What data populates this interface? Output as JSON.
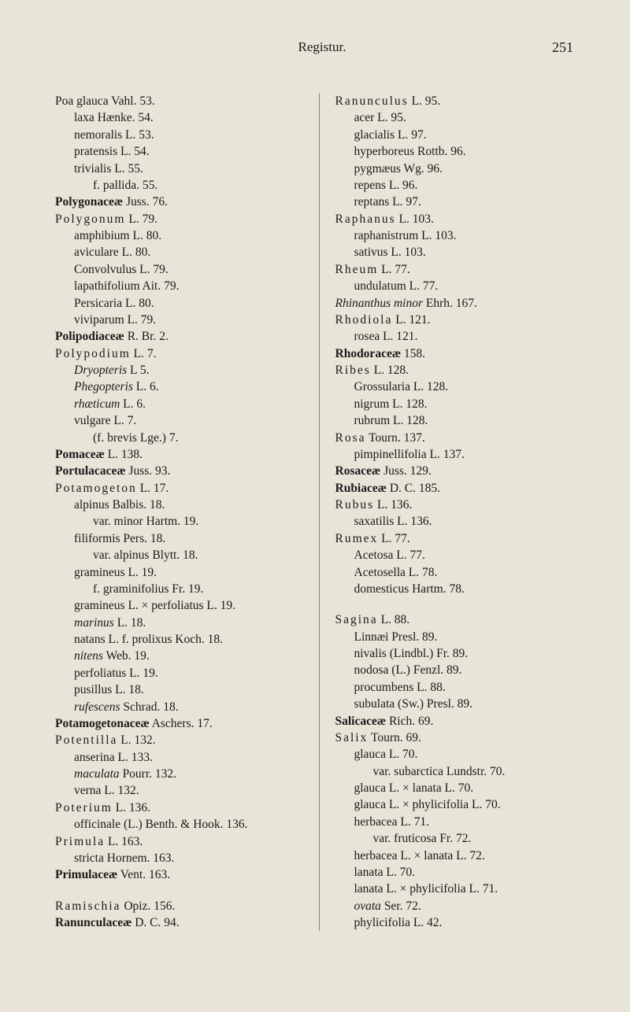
{
  "header": {
    "title": "Registur.",
    "page_number": "251"
  },
  "left": [
    {
      "t": "Poa glauca Vahl. 53.",
      "cls": "spaced-first"
    },
    {
      "t": "laxa Hænke. 54.",
      "indent": true
    },
    {
      "t": "nemoralis L. 53.",
      "indent": true
    },
    {
      "t": "pratensis L. 54.",
      "indent": true
    },
    {
      "t": "trivialis L. 55.",
      "indent": true
    },
    {
      "t": "f. pallida. 55.",
      "indent": true,
      "extra": true
    },
    {
      "t": "Polygonaceæ Juss. 76.",
      "bold": "Polygonaceæ"
    },
    {
      "t": "Polygonum L. 79.",
      "spaced": "Polygonum"
    },
    {
      "t": "amphibium L. 80.",
      "indent": true
    },
    {
      "t": "aviculare L. 80.",
      "indent": true
    },
    {
      "t": "Convolvulus L. 79.",
      "indent": true
    },
    {
      "t": "lapathifolium Ait. 79.",
      "indent": true
    },
    {
      "t": "Persicaria L. 80.",
      "indent": true
    },
    {
      "t": "viviparum L. 79.",
      "indent": true
    },
    {
      "t": "Polipodiaceæ R. Br. 2.",
      "bold": "Polipodiaceæ"
    },
    {
      "t": "Polypodium L. 7.",
      "spaced": "Polypodium"
    },
    {
      "t": "Dryopteris L 5.",
      "indent": true,
      "italic": "Dryopteris"
    },
    {
      "t": "Phegopteris L. 6.",
      "indent": true,
      "italic": "Phegopteris"
    },
    {
      "t": "rhæticum L. 6.",
      "indent": true,
      "italic": "rhæticum"
    },
    {
      "t": "vulgare L. 7.",
      "indent": true
    },
    {
      "t": "(f. brevis Lge.) 7.",
      "indent": true,
      "extra": true
    },
    {
      "t": "Pomaceæ L. 138.",
      "bold": "Pomaceæ"
    },
    {
      "t": "Portulacaceæ Juss. 93.",
      "bold": "Portulacaceæ"
    },
    {
      "t": "Potamogeton L. 17.",
      "spaced": "Potamogeton"
    },
    {
      "t": "alpinus Balbis. 18.",
      "indent": true
    },
    {
      "t": "var. minor Hartm. 19.",
      "indent": true,
      "extra": true
    },
    {
      "t": "filiformis Pers. 18.",
      "indent": true
    },
    {
      "t": "var. alpinus Blytt. 18.",
      "indent": true,
      "extra": true
    },
    {
      "t": "gramineus L. 19.",
      "indent": true
    },
    {
      "t": "f. graminifolius Fr. 19.",
      "indent": true,
      "extra": true
    },
    {
      "t": "gramineus L. × perfoliatus L. 19.",
      "indent": true
    },
    {
      "t": "marinus L. 18.",
      "indent": true,
      "italic": "marinus"
    },
    {
      "t": "natans L. f. prolixus Koch. 18.",
      "indent": true
    },
    {
      "t": "nitens Web. 19.",
      "indent": true,
      "italic": "nitens"
    },
    {
      "t": "perfoliatus L. 19.",
      "indent": true
    },
    {
      "t": "pusillus L. 18.",
      "indent": true
    },
    {
      "t": "rufescens Schrad. 18.",
      "indent": true,
      "italic": "rufescens"
    },
    {
      "t": "Potamogetonaceæ Aschers. 17.",
      "bold": "Potamogetonaceæ"
    },
    {
      "t": "Potentilla L. 132.",
      "spaced": "Potentilla"
    },
    {
      "t": "anserina L. 133.",
      "indent": true
    },
    {
      "t": "maculata Pourr. 132.",
      "indent": true,
      "italic": "maculata"
    },
    {
      "t": "verna L. 132.",
      "indent": true
    },
    {
      "t": "Poterium L. 136.",
      "spaced": "Poterium"
    },
    {
      "t": "officinale (L.) Benth. & Hook. 136.",
      "indent": true
    },
    {
      "t": "Primula L. 163.",
      "spaced": "Primula"
    },
    {
      "t": "stricta Hornem. 163.",
      "indent": true
    },
    {
      "t": "Primulaceæ Vent. 163.",
      "bold": "Primulaceæ"
    },
    {
      "gap": true
    },
    {
      "t": "Ramischia Opiz. 156.",
      "spaced": "Ramischia"
    },
    {
      "t": "Ranunculaceæ D. C. 94.",
      "bold": "Ranunculaceæ"
    }
  ],
  "right": [
    {
      "t": "Ranunculus L. 95.",
      "spaced": "Ranunculus"
    },
    {
      "t": "acer L. 95.",
      "indent": true
    },
    {
      "t": "glacialis L. 97.",
      "indent": true
    },
    {
      "t": "hyperboreus Rottb. 96.",
      "indent": true
    },
    {
      "t": "pygmæus Wg. 96.",
      "indent": true
    },
    {
      "t": "repens L. 96.",
      "indent": true
    },
    {
      "t": "reptans L. 97.",
      "indent": true
    },
    {
      "t": "Raphanus L. 103.",
      "spaced": "Raphanus"
    },
    {
      "t": "raphanistrum L. 103.",
      "indent": true
    },
    {
      "t": "sativus L. 103.",
      "indent": true
    },
    {
      "t": "Rheum L. 77.",
      "spaced": "Rheum"
    },
    {
      "t": "undulatum L. 77.",
      "indent": true
    },
    {
      "t": "Rhinanthus minor Ehrh. 167.",
      "italic": "Rhinanthus minor"
    },
    {
      "t": "Rhodiola L. 121.",
      "spaced": "Rhodiola"
    },
    {
      "t": "rosea L. 121.",
      "indent": true
    },
    {
      "t": "Rhodoraceæ 158.",
      "bold": "Rhodoraceæ"
    },
    {
      "t": "Ribes L. 128.",
      "spaced": "Ribes"
    },
    {
      "t": "Grossularia L. 128.",
      "indent": true
    },
    {
      "t": "nigrum L. 128.",
      "indent": true
    },
    {
      "t": "rubrum L. 128.",
      "indent": true
    },
    {
      "t": "Rosa Tourn. 137.",
      "spaced": "Rosa"
    },
    {
      "t": "pimpinellifolia L. 137.",
      "indent": true
    },
    {
      "t": "Rosaceæ Juss. 129.",
      "bold": "Rosaceæ"
    },
    {
      "t": "Rubiaceæ D. C. 185.",
      "bold": "Rubiaceæ"
    },
    {
      "t": "Rubus L. 136.",
      "spaced": "Rubus"
    },
    {
      "t": "saxatilis L. 136.",
      "indent": true
    },
    {
      "t": "Rumex L. 77.",
      "spaced": "Rumex"
    },
    {
      "t": "Acetosa L. 77.",
      "indent": true
    },
    {
      "t": "Acetosella L. 78.",
      "indent": true
    },
    {
      "t": "domesticus Hartm. 78.",
      "indent": true
    },
    {
      "gap": true
    },
    {
      "t": "Sagina L. 88.",
      "spaced": "Sagina"
    },
    {
      "t": "Linnæi Presl. 89.",
      "indent": true
    },
    {
      "t": "nivalis (Lindbl.) Fr. 89.",
      "indent": true
    },
    {
      "t": "nodosa (L.) Fenzl. 89.",
      "indent": true
    },
    {
      "t": "procumbens L. 88.",
      "indent": true
    },
    {
      "t": "subulata (Sw.) Presl. 89.",
      "indent": true
    },
    {
      "t": "Salicaceæ Rich. 69.",
      "bold": "Salicaceæ"
    },
    {
      "t": "Salix Tourn. 69.",
      "spaced": "Salix"
    },
    {
      "t": "glauca L. 70.",
      "indent": true
    },
    {
      "t": "var. subarctica Lundstr. 70.",
      "indent": true,
      "extra": true
    },
    {
      "t": "glauca L. × lanata L. 70.",
      "indent": true
    },
    {
      "t": "glauca L. × phylicifolia L. 70.",
      "indent": true
    },
    {
      "t": "herbacea L. 71.",
      "indent": true
    },
    {
      "t": "var. fruticosa Fr. 72.",
      "indent": true,
      "extra": true
    },
    {
      "t": "herbacea L. × lanata L. 72.",
      "indent": true
    },
    {
      "t": "lanata L. 70.",
      "indent": true
    },
    {
      "t": "lanata L. × phylicifolia L. 71.",
      "indent": true
    },
    {
      "t": "ovata Ser. 72.",
      "indent": true,
      "italic": "ovata"
    },
    {
      "t": "phylicifolia L. 42.",
      "indent": true
    }
  ]
}
